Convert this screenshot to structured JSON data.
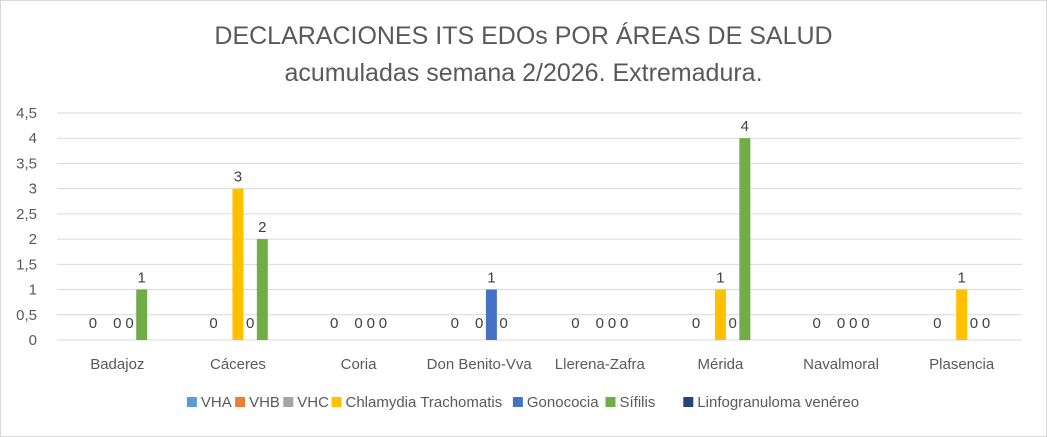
{
  "chart_data": {
    "type": "bar",
    "title": "DECLARACIONES ITS EDOs POR ÁREAS DE SALUD",
    "subtitle": "acumuladas semana 2/2026. Extremadura.",
    "categories": [
      "Badajoz",
      "Cáceres",
      "Coria",
      "Don Benito-Vva",
      "Llerena-Zafra",
      "Mérida",
      "Navalmoral",
      "Plasencia"
    ],
    "yticks": [
      "0",
      "0,5",
      "1",
      "1,5",
      "2",
      "2,5",
      "3",
      "3,5",
      "4",
      "4,5"
    ],
    "ylim": [
      0,
      4.5
    ],
    "grid": true,
    "legend_position": "bottom",
    "series": [
      {
        "name": "VHA",
        "color": "#5b9bd5",
        "values": [
          0,
          0,
          0,
          0,
          0,
          0,
          0,
          0
        ],
        "labels": [
          false,
          false,
          false,
          false,
          false,
          false,
          false,
          false
        ]
      },
      {
        "name": "VHB",
        "color": "#ed7d31",
        "values": [
          0,
          0,
          0,
          0,
          0,
          0,
          0,
          0
        ],
        "labels": [
          true,
          true,
          true,
          true,
          true,
          true,
          true,
          true
        ]
      },
      {
        "name": "VHC",
        "color": "#a5a5a5",
        "values": [
          0,
          0,
          0,
          0,
          0,
          0,
          0,
          0
        ],
        "labels": [
          false,
          false,
          false,
          false,
          false,
          false,
          false,
          false
        ]
      },
      {
        "name": "Chlamydia Trachomatis",
        "color": "#ffc000",
        "values": [
          0,
          3,
          0,
          0,
          0,
          1,
          0,
          1
        ],
        "labels": [
          true,
          true,
          true,
          true,
          true,
          true,
          true,
          true
        ]
      },
      {
        "name": "Gonococia",
        "color": "#4472c4",
        "values": [
          0,
          0,
          0,
          1,
          0,
          0,
          0,
          0
        ],
        "labels": [
          true,
          true,
          true,
          true,
          true,
          true,
          true,
          true
        ]
      },
      {
        "name": "Sífilis",
        "color": "#70ad47",
        "values": [
          1,
          2,
          0,
          0,
          0,
          4,
          0,
          0
        ],
        "labels": [
          true,
          true,
          true,
          true,
          true,
          true,
          true,
          true
        ]
      },
      {
        "name": "Linfogranuloma venéreo",
        "color": "#264478",
        "values": [
          0,
          0,
          0,
          0,
          0,
          0,
          0,
          0
        ],
        "labels": [
          false,
          false,
          false,
          false,
          false,
          false,
          false,
          false
        ]
      }
    ]
  }
}
